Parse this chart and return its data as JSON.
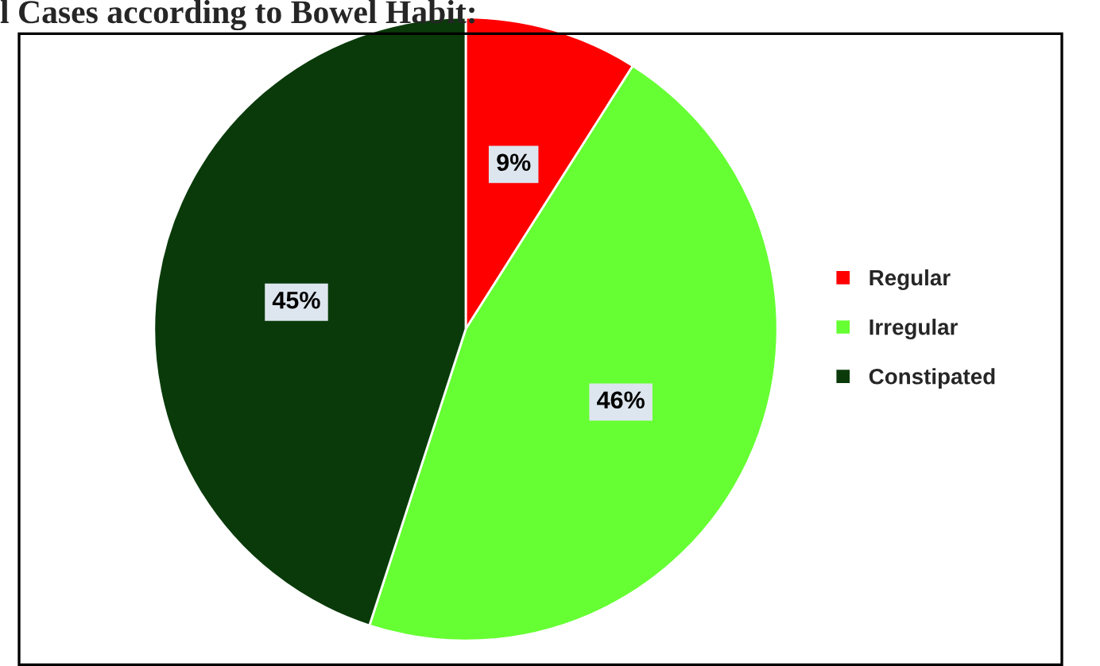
{
  "chart_data": {
    "type": "pie",
    "title": "l Cases according to Bowel Habit:",
    "categories": [
      "Regular",
      "Irregular",
      "Constipated"
    ],
    "values": [
      9,
      46,
      45
    ],
    "colors": [
      "#ff0000",
      "#66ff33",
      "#0a3a0a"
    ],
    "value_labels": [
      "9%",
      "46%",
      "45%"
    ],
    "legend": "right"
  }
}
